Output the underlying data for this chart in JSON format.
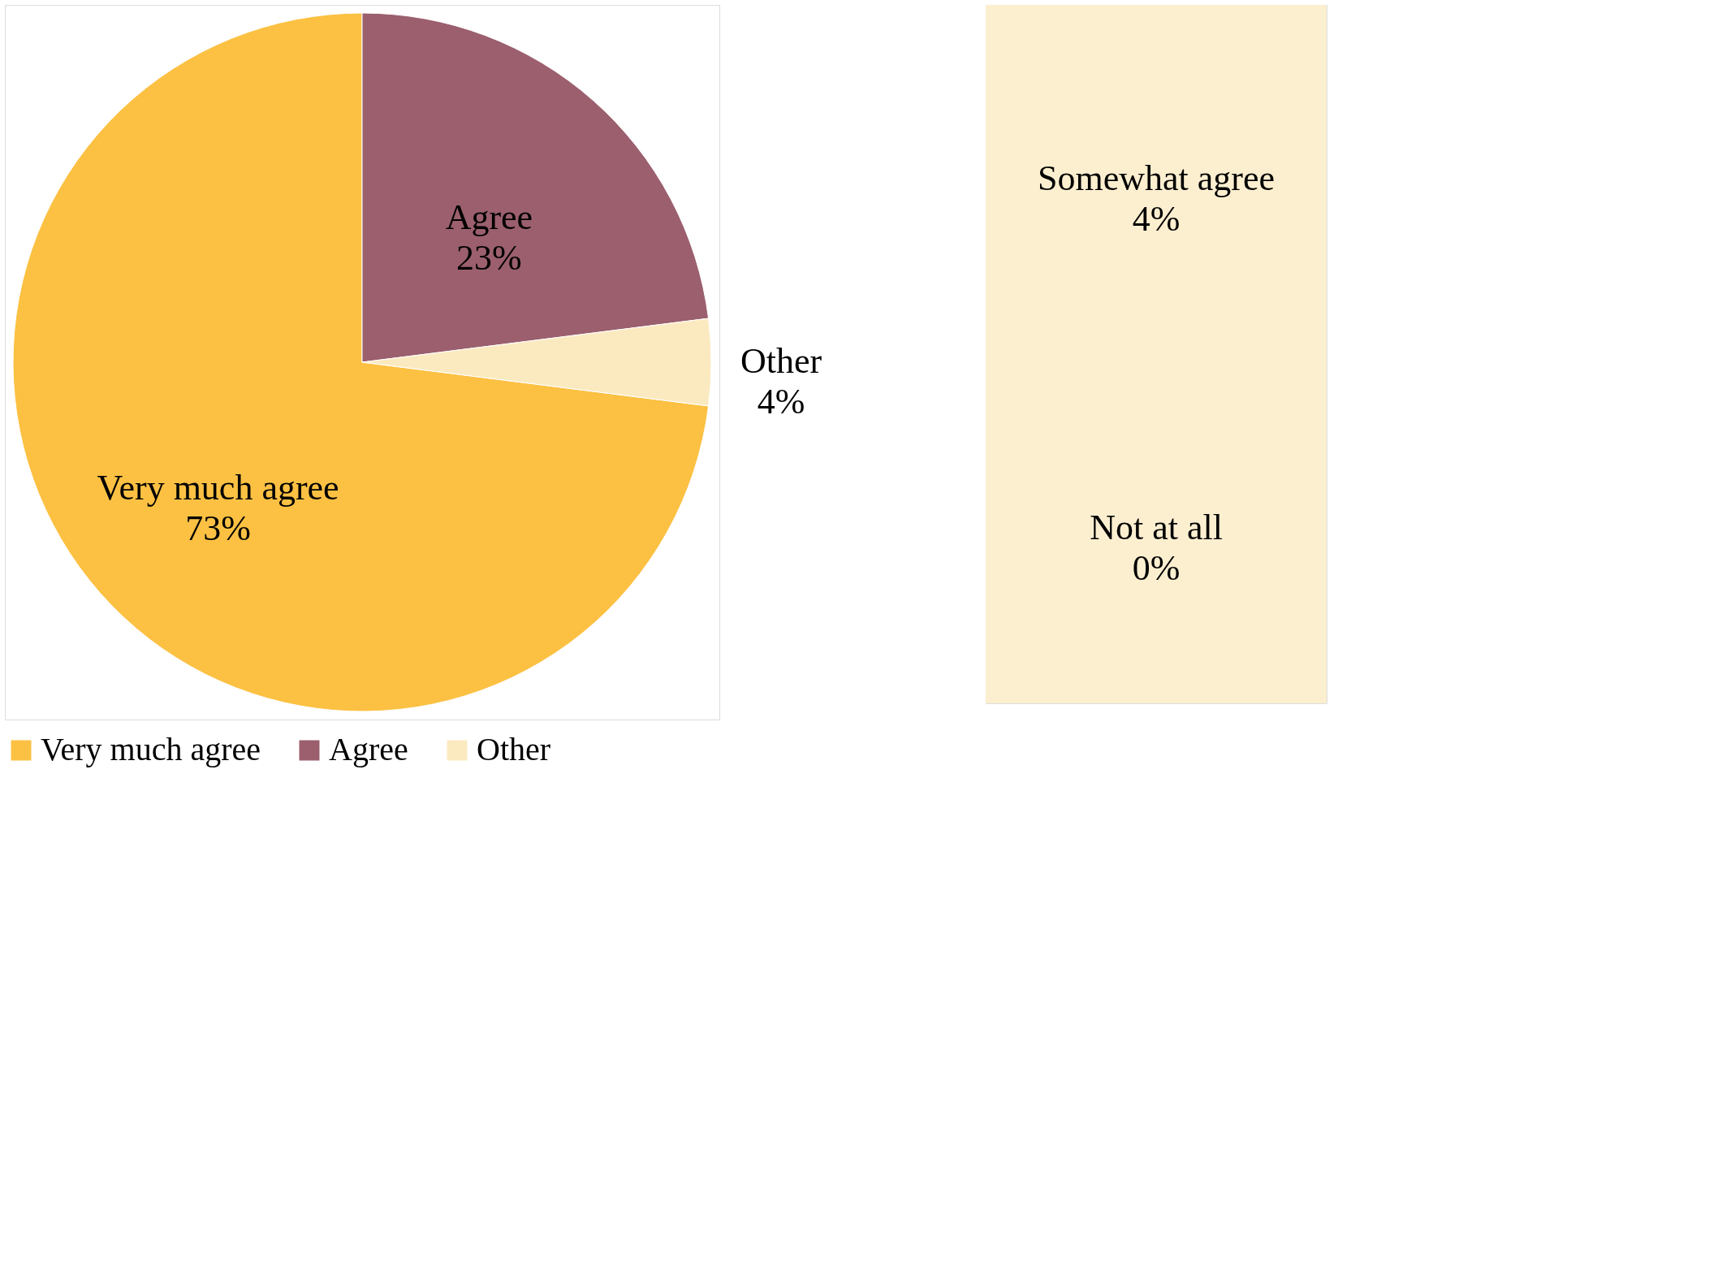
{
  "chart_data": [
    {
      "type": "pie",
      "categories": [
        "Very much agree",
        "Agree",
        "Other"
      ],
      "values": [
        73,
        23,
        4
      ],
      "colors": [
        "#fcc143",
        "#9b5f6e",
        "#fbeac0"
      ],
      "value_labels": [
        "73%",
        "23%",
        "4%"
      ],
      "legend": "bottom"
    },
    {
      "type": "other",
      "categories": [
        "Somewhat agree",
        "Not at all"
      ],
      "values": [
        4,
        0
      ],
      "value_labels": [
        "4%",
        "0%"
      ]
    }
  ]
}
